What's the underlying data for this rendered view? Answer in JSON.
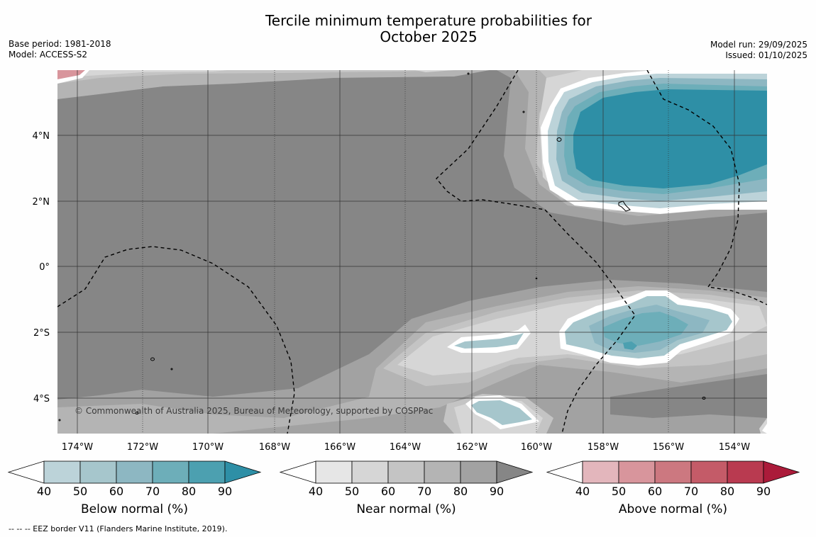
{
  "title_line1": "Tercile minimum temperature probabilities for",
  "title_line2": "October 2025",
  "base_period": "Base period: 1981-2018",
  "model": "Model: ACCESS-S2",
  "model_run": "Model run: 29/09/2025",
  "issued": "Issued: 01/10/2025",
  "copyright": "© Commonwealth of Australia 2025, Bureau of Meteorology, supported by COSPPac",
  "footnote": "--  --  -- EEZ border V11 (Flanders Marine Institute, 2019).",
  "map": {
    "lon_labels": [
      "174°W",
      "172°W",
      "170°W",
      "168°W",
      "166°W",
      "164°W",
      "162°W",
      "160°W",
      "158°W",
      "156°W",
      "154°W"
    ],
    "lat_labels": [
      "4°N",
      "2°N",
      "0°",
      "2°S",
      "4°S"
    ],
    "background_color": "#868686"
  },
  "colorbars": [
    {
      "id": "below",
      "label": "Below normal (%)",
      "ticks": [
        "40",
        "50",
        "60",
        "70",
        "80",
        "90"
      ],
      "colors": [
        "#ffffff",
        "#bcd3d9",
        "#a6c6cc",
        "#8db7c2",
        "#6daeb9",
        "#4ca0b0",
        "#2e8fa6"
      ]
    },
    {
      "id": "near",
      "label": "Near normal (%)",
      "ticks": [
        "40",
        "50",
        "60",
        "70",
        "80",
        "90"
      ],
      "colors": [
        "#ffffff",
        "#e6e6e6",
        "#d6d6d6",
        "#c4c4c4",
        "#b4b4b4",
        "#a2a2a2",
        "#868686"
      ]
    },
    {
      "id": "above",
      "label": "Above normal (%)",
      "ticks": [
        "40",
        "50",
        "60",
        "70",
        "80",
        "90"
      ],
      "colors": [
        "#ffffff",
        "#e3b6bc",
        "#d8959c",
        "#cc7880",
        "#c45b68",
        "#b93a50",
        "#ab1b3a"
      ]
    }
  ]
}
